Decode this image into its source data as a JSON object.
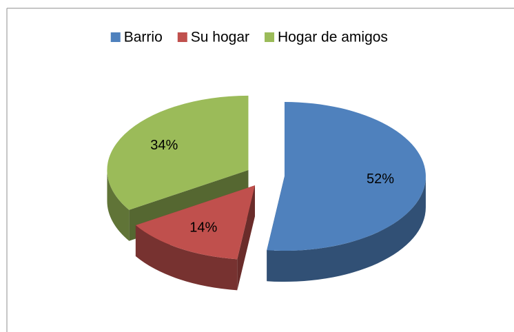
{
  "chart_data": {
    "type": "pie3d",
    "categories": [
      "Barrio",
      "Su hogar",
      "Hogar de amigos"
    ],
    "values": [
      52,
      14,
      34
    ],
    "value_labels": [
      "52%",
      "14%",
      "34%"
    ],
    "colors": [
      "#4f81bd",
      "#c0504d",
      "#9bbb59"
    ],
    "legend": "top",
    "exploded": true
  }
}
